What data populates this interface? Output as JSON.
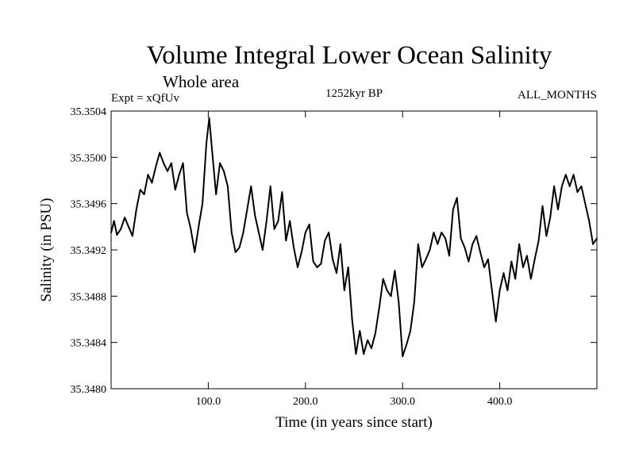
{
  "chart_data": {
    "type": "line",
    "title": "Volume Integral Lower Ocean Salinity",
    "subtitle": "Whole area",
    "left_note": "Expt = xQfUv",
    "center_note": "1252kyr BP",
    "right_note": "ALL_MONTHS",
    "xlabel": "Time (in years since start)",
    "ylabel": "Salinity (in PSU)",
    "xlim": [
      0,
      500
    ],
    "ylim": [
      35.348,
      35.3504
    ],
    "xticks": [
      100,
      200,
      300,
      400
    ],
    "xtick_labels": [
      "100.0",
      "200.0",
      "300.0",
      "400.0"
    ],
    "yticks": [
      35.348,
      35.3484,
      35.3488,
      35.3492,
      35.3496,
      35.35,
      35.3504
    ],
    "ytick_labels": [
      "35.3480",
      "35.3484",
      "35.3488",
      "35.3492",
      "35.3496",
      "35.3500",
      "35.3504"
    ],
    "series": [
      {
        "name": "Salinity",
        "x": [
          0,
          3,
          6,
          10,
          14,
          18,
          22,
          26,
          30,
          34,
          38,
          42,
          46,
          50,
          54,
          58,
          62,
          66,
          70,
          74,
          78,
          82,
          86,
          90,
          94,
          98,
          101,
          104,
          108,
          112,
          116,
          120,
          124,
          128,
          132,
          136,
          140,
          144,
          148,
          152,
          156,
          160,
          164,
          168,
          172,
          176,
          180,
          184,
          188,
          192,
          196,
          200,
          204,
          208,
          212,
          216,
          220,
          224,
          228,
          232,
          236,
          240,
          244,
          248,
          252,
          256,
          260,
          264,
          268,
          272,
          276,
          280,
          284,
          288,
          292,
          296,
          300,
          304,
          308,
          312,
          316,
          320,
          324,
          328,
          332,
          336,
          340,
          344,
          348,
          352,
          356,
          360,
          364,
          368,
          372,
          376,
          380,
          384,
          388,
          392,
          396,
          400,
          404,
          408,
          412,
          416,
          420,
          424,
          428,
          432,
          436,
          440,
          444,
          448,
          452,
          456,
          460,
          464,
          468,
          472,
          476,
          480,
          484,
          488,
          492,
          496,
          500
        ],
        "y": [
          35.34935,
          35.34945,
          35.34933,
          35.34938,
          35.34948,
          35.3494,
          35.34932,
          35.34955,
          35.34972,
          35.34968,
          35.34985,
          35.34978,
          35.34992,
          35.35004,
          35.34995,
          35.34988,
          35.34995,
          35.34972,
          35.34985,
          35.34995,
          35.34952,
          35.34938,
          35.34918,
          35.3494,
          35.3496,
          35.35012,
          35.35034,
          35.35005,
          35.34968,
          35.34995,
          35.34988,
          35.34975,
          35.34935,
          35.34918,
          35.34922,
          35.34935,
          35.34955,
          35.34975,
          35.3495,
          35.34935,
          35.3492,
          35.34945,
          35.34975,
          35.34938,
          35.34945,
          35.3497,
          35.34928,
          35.34945,
          35.34922,
          35.34905,
          35.34918,
          35.34935,
          35.34942,
          35.3491,
          35.34905,
          35.34908,
          35.34928,
          35.34935,
          35.34912,
          35.349,
          35.34925,
          35.34885,
          35.34905,
          35.3486,
          35.3483,
          35.3485,
          35.3483,
          35.34842,
          35.34835,
          35.34848,
          35.3487,
          35.34895,
          35.34885,
          35.3488,
          35.34902,
          35.34875,
          35.34828,
          35.34838,
          35.3485,
          35.34875,
          35.34925,
          35.34905,
          35.34912,
          35.3492,
          35.34935,
          35.34925,
          35.34935,
          35.3493,
          35.34915,
          35.34955,
          35.34965,
          35.3493,
          35.34922,
          35.3491,
          35.34925,
          35.34932,
          35.34918,
          35.34905,
          35.34912,
          35.34885,
          35.34858,
          35.34885,
          35.349,
          35.34885,
          35.3491,
          35.34895,
          35.34925,
          35.34905,
          35.34915,
          35.34895,
          35.34912,
          35.34928,
          35.34958,
          35.34932,
          35.34948,
          35.34975,
          35.34955,
          35.34975,
          35.34985,
          35.34975,
          35.34985,
          35.3497,
          35.34975,
          35.3496,
          35.34945,
          35.34925,
          35.3493
        ]
      }
    ]
  }
}
